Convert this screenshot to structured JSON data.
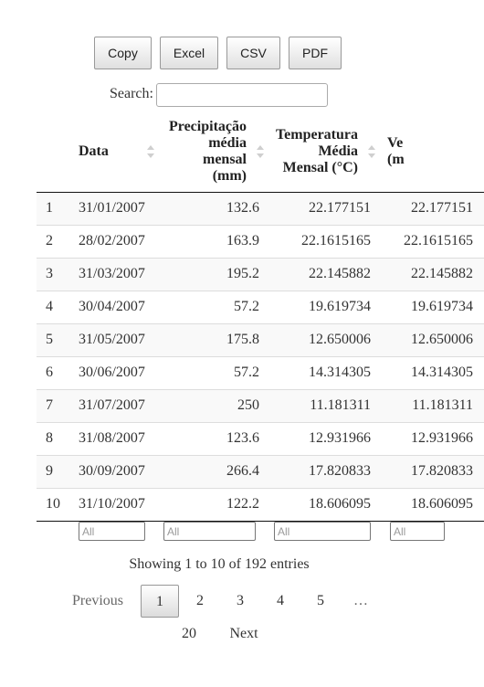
{
  "buttons": {
    "copy": "Copy",
    "excel": "Excel",
    "csv": "CSV",
    "pdf": "PDF"
  },
  "search": {
    "label": "Search:",
    "value": ""
  },
  "table": {
    "headers": {
      "index": "",
      "date": "Data",
      "precip_lines": [
        "Precipitação",
        "média",
        "mensal",
        "(mm)"
      ],
      "temp_lines": [
        "Temperatura",
        "Média",
        "Mensal (°C)"
      ],
      "next_lines": [
        "Ve",
        "(m"
      ]
    },
    "rows": [
      {
        "idx": "1",
        "date": "31/01/2007",
        "precip": "132.6",
        "temp": "22.177151",
        "next": "22.177151"
      },
      {
        "idx": "2",
        "date": "28/02/2007",
        "precip": "163.9",
        "temp": "22.1615165",
        "next": "22.1615165"
      },
      {
        "idx": "3",
        "date": "31/03/2007",
        "precip": "195.2",
        "temp": "22.145882",
        "next": "22.145882"
      },
      {
        "idx": "4",
        "date": "30/04/2007",
        "precip": "57.2",
        "temp": "19.619734",
        "next": "19.619734"
      },
      {
        "idx": "5",
        "date": "31/05/2007",
        "precip": "175.8",
        "temp": "12.650006",
        "next": "12.650006"
      },
      {
        "idx": "6",
        "date": "30/06/2007",
        "precip": "57.2",
        "temp": "14.314305",
        "next": "14.314305"
      },
      {
        "idx": "7",
        "date": "31/07/2007",
        "precip": "250",
        "temp": "11.181311",
        "next": "11.181311"
      },
      {
        "idx": "8",
        "date": "31/08/2007",
        "precip": "123.6",
        "temp": "12.931966",
        "next": "12.931966"
      },
      {
        "idx": "9",
        "date": "30/09/2007",
        "precip": "266.4",
        "temp": "17.820833",
        "next": "17.820833"
      },
      {
        "idx": "10",
        "date": "31/10/2007",
        "precip": "122.2",
        "temp": "18.606095",
        "next": "18.606095"
      }
    ]
  },
  "filters": {
    "placeholder": "All"
  },
  "info": "Showing 1 to 10 of 192 entries",
  "pagination": {
    "previous": "Previous",
    "pages": [
      "1",
      "2",
      "3",
      "4",
      "5"
    ],
    "ellipsis": "…",
    "last": "20",
    "next": "Next",
    "current": "1"
  }
}
